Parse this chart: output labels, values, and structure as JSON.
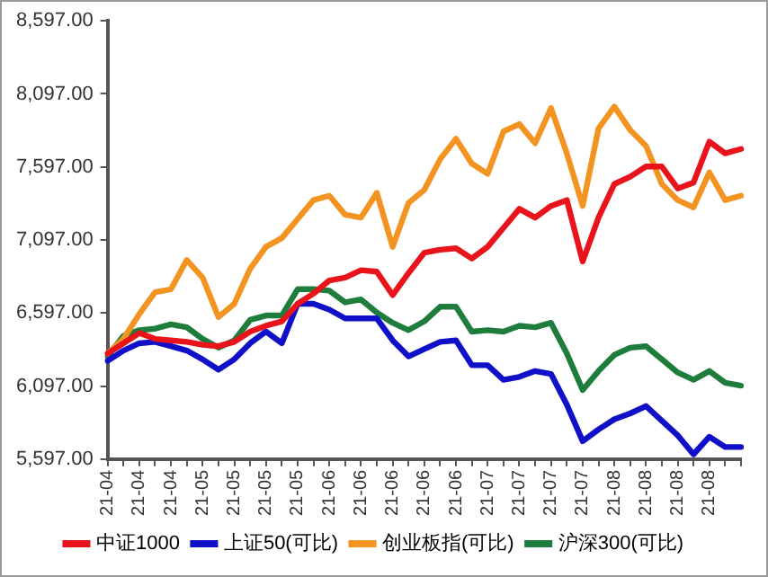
{
  "chart_data": {
    "type": "line",
    "categories": [
      "21-04",
      null,
      "21-04",
      null,
      "21-04",
      null,
      "21-05",
      null,
      "21-05",
      null,
      "21-05",
      null,
      "21-05",
      null,
      "21-06",
      null,
      "21-06",
      null,
      "21-06",
      null,
      "21-06",
      null,
      "21-06",
      null,
      "21-07",
      null,
      "21-07",
      null,
      "21-07",
      null,
      "21-07",
      null,
      "21-08",
      null,
      "21-08",
      null,
      "21-08",
      null,
      "21-08",
      null,
      null
    ],
    "ylim": [
      5597,
      8597
    ],
    "yticks": [
      {
        "value": 5597,
        "label": "5,597.00"
      },
      {
        "value": 6097,
        "label": "6,097.00"
      },
      {
        "value": 6597,
        "label": "6,597.00"
      },
      {
        "value": 7097,
        "label": "7,097.00"
      },
      {
        "value": 7597,
        "label": "7,597.00"
      },
      {
        "value": 8097,
        "label": "8,097.00"
      },
      {
        "value": 8597,
        "label": "8,597.00"
      }
    ],
    "grid": false,
    "legend": "bottom",
    "marker": "none",
    "line_style": "solid",
    "series": [
      {
        "name": "中证1000",
        "color": "#e8131b",
        "values": [
          6320,
          6390,
          6460,
          6420,
          6410,
          6400,
          6380,
          6370,
          6400,
          6470,
          6510,
          6540,
          6660,
          6730,
          6820,
          6840,
          6890,
          6880,
          6720,
          6870,
          7010,
          7030,
          7040,
          6970,
          7050,
          7180,
          7310,
          7250,
          7330,
          7370,
          6950,
          7250,
          7480,
          7530,
          7600,
          7600,
          7450,
          7490,
          7770,
          7690,
          7720
        ]
      },
      {
        "name": "上证50(可比)",
        "color": "#1010c8",
        "values": [
          6270,
          6340,
          6390,
          6400,
          6370,
          6340,
          6280,
          6210,
          6280,
          6390,
          6470,
          6390,
          6660,
          6660,
          6620,
          6560,
          6560,
          6560,
          6410,
          6300,
          6350,
          6400,
          6410,
          6240,
          6240,
          6140,
          6160,
          6200,
          6180,
          5970,
          5720,
          5800,
          5870,
          5910,
          5960,
          5860,
          5760,
          5630,
          5750,
          5680,
          5680
        ]
      },
      {
        "name": "创业板指(可比)",
        "color": "#f39422",
        "values": [
          6320,
          6420,
          6590,
          6740,
          6760,
          6960,
          6840,
          6570,
          6660,
          6900,
          7050,
          7110,
          7240,
          7370,
          7400,
          7270,
          7250,
          7420,
          7050,
          7350,
          7440,
          7650,
          7790,
          7620,
          7550,
          7840,
          7890,
          7760,
          8000,
          7690,
          7330,
          7860,
          8010,
          7850,
          7740,
          7480,
          7370,
          7320,
          7560,
          7370,
          7400
        ]
      },
      {
        "name": "沪深300(可比)",
        "color": "#1e7d3c",
        "values": [
          6300,
          6440,
          6480,
          6490,
          6520,
          6500,
          6420,
          6360,
          6410,
          6550,
          6580,
          6580,
          6760,
          6760,
          6750,
          6670,
          6690,
          6600,
          6530,
          6480,
          6540,
          6640,
          6640,
          6470,
          6480,
          6470,
          6510,
          6500,
          6530,
          6320,
          6070,
          6200,
          6310,
          6360,
          6370,
          6280,
          6190,
          6140,
          6200,
          6120,
          6100
        ]
      }
    ]
  }
}
